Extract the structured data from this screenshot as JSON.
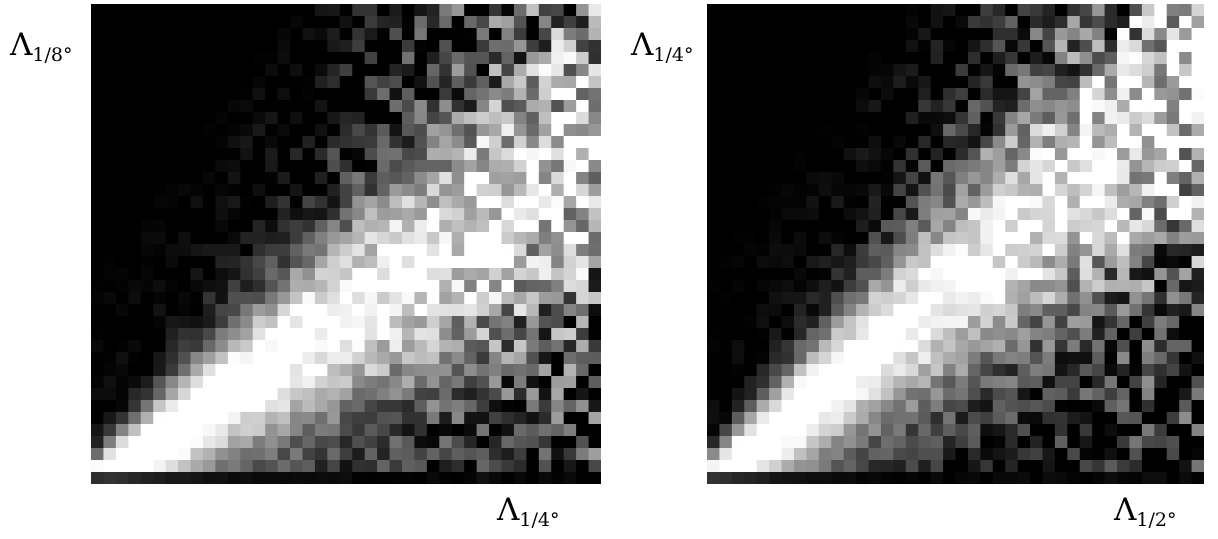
{
  "chart_data": [
    {
      "type": "heatmap",
      "xlabel": {
        "symbol": "Λ",
        "subscript": "1/4°"
      },
      "ylabel": {
        "symbol": "Λ",
        "subscript": "1/8°"
      },
      "colormap": "gray",
      "grid": false,
      "grid_size": [
        41,
        40
      ],
      "ridge_slope": 0.72,
      "noise_seed": 1234
    },
    {
      "type": "heatmap",
      "xlabel": {
        "symbol": "Λ",
        "subscript": "1/2°"
      },
      "ylabel": {
        "symbol": "Λ",
        "subscript": "1/4°"
      },
      "colormap": "gray",
      "grid": false,
      "grid_size": [
        40,
        40
      ],
      "ridge_slope": 0.85,
      "noise_seed": 9876
    }
  ]
}
